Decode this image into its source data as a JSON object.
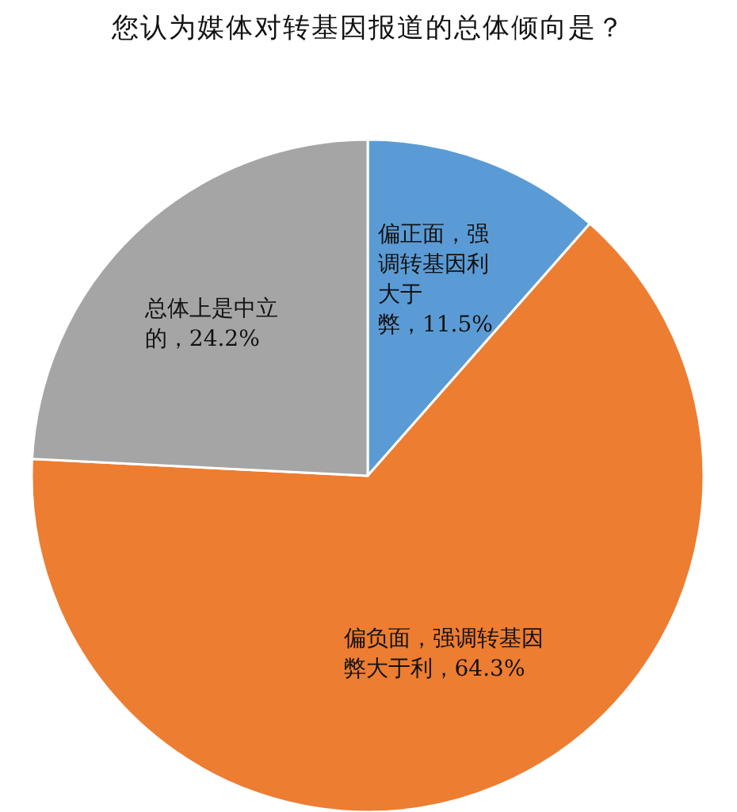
{
  "chart_data": {
    "type": "pie",
    "title": "您认为媒体对转基因报道的总体倾向是？",
    "categories": [
      "偏正面，强调转基因利大于弊",
      "偏负面，强调转基因弊大于利",
      "总体上是中立的"
    ],
    "values": [
      11.5,
      64.3,
      24.2
    ],
    "value_labels": [
      "，11.5%",
      "，64.3%",
      "，24.2%"
    ],
    "colors": [
      "#5b9bd5",
      "#ed7d31",
      "#a5a5a5"
    ]
  }
}
